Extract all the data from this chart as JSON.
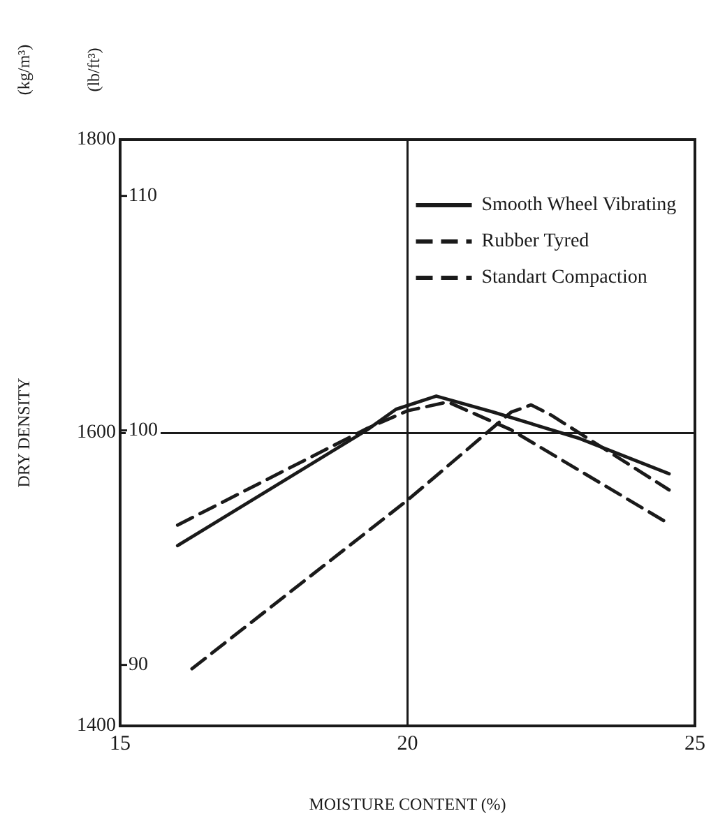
{
  "chart_data": {
    "type": "line",
    "xlabel": "MOISTURE CONTENT (%)",
    "ylabel": "DRY DENSITY",
    "annotations": [
      "(kg/m³)",
      "(lb/ft³)"
    ],
    "xlim": [
      15,
      25
    ],
    "xticks": [
      15,
      20,
      25
    ],
    "ylim": [
      1400,
      1800
    ],
    "yticks": [
      1400,
      1600,
      1800
    ],
    "y2lim": [
      87.4,
      112.4
    ],
    "y2ticks": [
      90,
      100,
      110
    ],
    "grid": true,
    "legend": "top",
    "marker": "none",
    "series": [
      {
        "name": "Smooth Wheel Vibrating",
        "color": "#1a1a1a",
        "line_style": "solid",
        "x": [
          16.0,
          19.3,
          19.8,
          20.5,
          21.5,
          23.0,
          24.55
        ],
        "values": [
          1523,
          1602,
          1616,
          1625,
          1614,
          1596,
          1572
        ]
      },
      {
        "name": "Rubber Tyred",
        "color": "#1a1a1a",
        "line_style": "dashed",
        "x": [
          16.25,
          20.0,
          21.8,
          22.15,
          22.5,
          24.55
        ],
        "values": [
          1439,
          1554,
          1614,
          1619,
          1612,
          1561
        ]
      },
      {
        "name": "Standart Compaction",
        "color": "#1a1a1a",
        "line_style": "dashed",
        "x": [
          16.0,
          19.3,
          20.0,
          20.7,
          21.8,
          24.5
        ],
        "values": [
          1537,
          1603,
          1615,
          1621,
          1602,
          1539
        ]
      }
    ]
  }
}
